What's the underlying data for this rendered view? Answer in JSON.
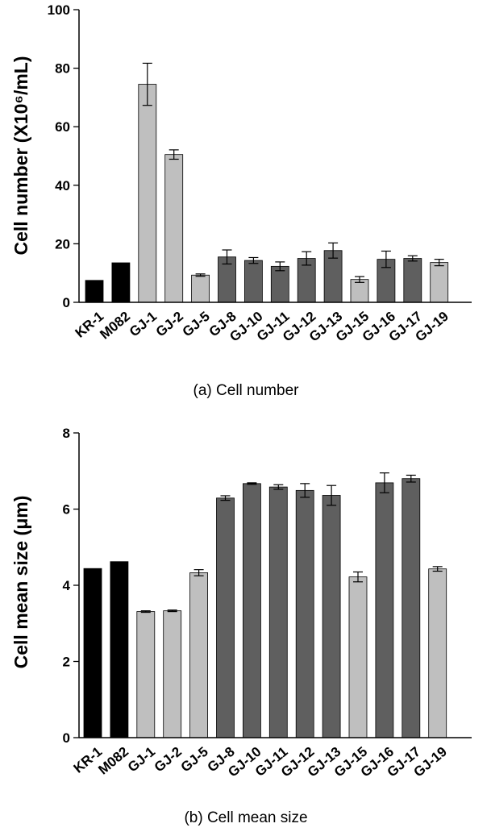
{
  "chart_data": [
    {
      "type": "bar",
      "caption": "(a) Cell number",
      "ylabel": "Cell number (X10⁶/mL)",
      "ylim": [
        0,
        100
      ],
      "yticks": [
        0,
        20,
        40,
        60,
        80,
        100
      ],
      "categories": [
        "KR-1",
        "M082",
        "GJ-1",
        "GJ-2",
        "GJ-5",
        "GJ-8",
        "GJ-10",
        "GJ-11",
        "GJ-12",
        "GJ-13",
        "GJ-15",
        "GJ-16",
        "GJ-17",
        "GJ-19"
      ],
      "values": [
        7.5,
        13.5,
        74.5,
        50.5,
        9.3,
        15.5,
        14.3,
        12.3,
        15.0,
        17.7,
        7.8,
        14.7,
        15.0,
        13.6
      ],
      "errors": [
        0,
        0,
        7.2,
        1.6,
        0.4,
        2.4,
        1.0,
        1.5,
        2.3,
        2.6,
        1.0,
        2.8,
        0.9,
        1.1
      ],
      "colors": [
        "#000000",
        "#000000",
        "#bfbfbf",
        "#bfbfbf",
        "#bfbfbf",
        "#5f5f5f",
        "#5f5f5f",
        "#5f5f5f",
        "#5f5f5f",
        "#5f5f5f",
        "#bfbfbf",
        "#5f5f5f",
        "#5f5f5f",
        "#bfbfbf"
      ]
    },
    {
      "type": "bar",
      "caption": "(b) Cell mean size",
      "ylabel": "Cell mean size (μm)",
      "ylim": [
        0,
        8
      ],
      "yticks": [
        0,
        2,
        4,
        6,
        8
      ],
      "categories": [
        "KR-1",
        "M082",
        "GJ-1",
        "GJ-2",
        "GJ-5",
        "GJ-8",
        "GJ-10",
        "GJ-11",
        "GJ-12",
        "GJ-13",
        "GJ-15",
        "GJ-16",
        "GJ-17",
        "GJ-19"
      ],
      "values": [
        4.44,
        4.62,
        3.31,
        3.33,
        4.33,
        6.29,
        6.67,
        6.58,
        6.49,
        6.36,
        4.22,
        6.69,
        6.8,
        4.43
      ],
      "errors": [
        0,
        0,
        0.02,
        0.02,
        0.08,
        0.06,
        0.02,
        0.06,
        0.18,
        0.26,
        0.13,
        0.26,
        0.09,
        0.06
      ],
      "colors": [
        "#000000",
        "#000000",
        "#bfbfbf",
        "#bfbfbf",
        "#bfbfbf",
        "#5f5f5f",
        "#5f5f5f",
        "#5f5f5f",
        "#5f5f5f",
        "#5f5f5f",
        "#bfbfbf",
        "#5f5f5f",
        "#5f5f5f",
        "#bfbfbf"
      ]
    }
  ]
}
